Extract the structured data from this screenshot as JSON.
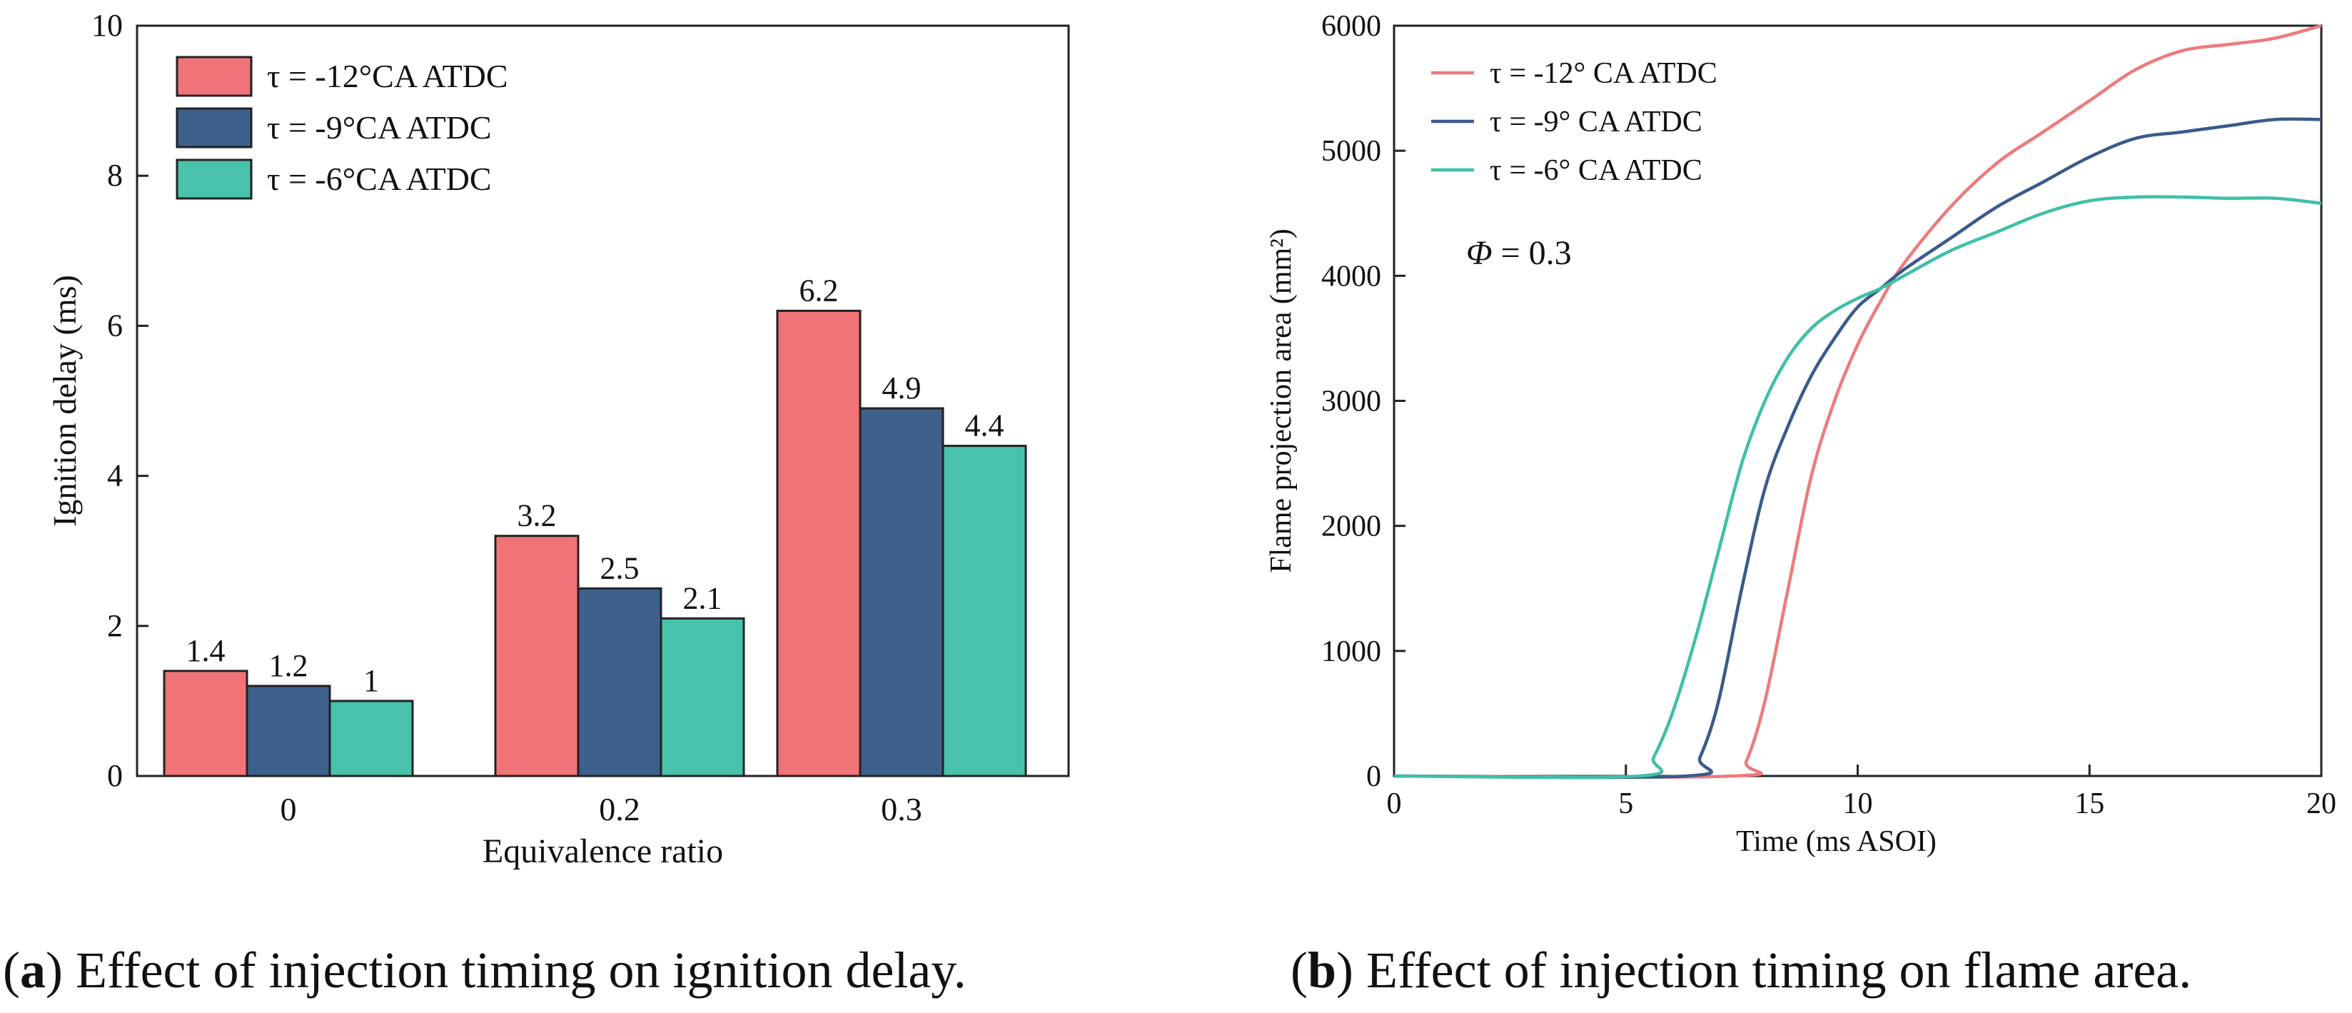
{
  "chart_data": [
    {
      "type": "bar",
      "xlabel": "Equivalence ratio",
      "ylabel": "Ignition delay (ms)",
      "categories": [
        "0",
        "0.2",
        "0.3"
      ],
      "ylim": [
        0,
        10
      ],
      "yticks": [
        0,
        2,
        4,
        6,
        8,
        10
      ],
      "grid": false,
      "legend_position": "top-left",
      "series": [
        {
          "name": "τ = -12°CA ATDC",
          "color": "#f07378",
          "values": [
            1.4,
            3.2,
            6.2
          ],
          "labels": [
            "1.4",
            "3.2",
            "6.2"
          ]
        },
        {
          "name": "τ = -9°CA ATDC",
          "color": "#3f608a",
          "values": [
            1.2,
            2.5,
            4.9
          ],
          "labels": [
            "1.2",
            "2.5",
            "4.9"
          ]
        },
        {
          "name": "τ = -6°CA ATDC",
          "color": "#48c2ab",
          "values": [
            1.0,
            2.1,
            4.4
          ],
          "labels": [
            "1",
            "2.1",
            "4.4"
          ]
        }
      ]
    },
    {
      "type": "line",
      "xlabel": "Time (ms ASOI)",
      "ylabel": "Flame projection area (mm²)",
      "xlim": [
        0,
        20
      ],
      "ylim": [
        0,
        6000
      ],
      "xticks": [
        0,
        5,
        10,
        15,
        20
      ],
      "yticks": [
        0,
        1000,
        2000,
        3000,
        4000,
        5000,
        6000
      ],
      "grid": false,
      "legend_position": "top-left",
      "annotation": {
        "symbol": "Φ",
        "text": " = 0.3"
      },
      "series": [
        {
          "name": "τ = -12° CA ATDC",
          "color": "#ee7a7c",
          "x": [
            0,
            7.3,
            7.6,
            8.0,
            8.5,
            9.0,
            9.5,
            10.0,
            10.5,
            11.0,
            12.0,
            13.0,
            14.0,
            15.0,
            16.0,
            17.0,
            18.0,
            19.0,
            20.0
          ],
          "y": [
            0,
            0,
            120,
            600,
            1500,
            2400,
            3000,
            3450,
            3800,
            4100,
            4550,
            4900,
            5150,
            5400,
            5650,
            5800,
            5850,
            5900,
            6000
          ]
        },
        {
          "name": "τ = -9° CA ATDC",
          "color": "#3a5a8c",
          "x": [
            0,
            6.3,
            6.6,
            7.0,
            7.5,
            8.0,
            8.5,
            9.0,
            9.5,
            10.0,
            10.5,
            11.0,
            12.0,
            13.0,
            14.0,
            15.0,
            16.0,
            17.0,
            18.0,
            19.0,
            20.0
          ],
          "y": [
            0,
            0,
            150,
            600,
            1500,
            2300,
            2800,
            3200,
            3500,
            3750,
            3900,
            4050,
            4300,
            4550,
            4750,
            4950,
            5100,
            5150,
            5200,
            5250,
            5250
          ]
        },
        {
          "name": "τ = -6° CA ATDC",
          "color": "#3ec0a6",
          "x": [
            0,
            5.3,
            5.6,
            6.0,
            6.5,
            7.0,
            7.5,
            8.0,
            8.5,
            9.0,
            9.5,
            10.0,
            10.5,
            11.0,
            12.0,
            13.0,
            14.0,
            15.0,
            16.0,
            17.0,
            18.0,
            19.0,
            20.0
          ],
          "y": [
            0,
            0,
            150,
            500,
            1100,
            1800,
            2500,
            3000,
            3350,
            3580,
            3720,
            3820,
            3900,
            4000,
            4200,
            4350,
            4500,
            4600,
            4630,
            4630,
            4620,
            4620,
            4580
          ]
        }
      ]
    }
  ],
  "captions": [
    {
      "label": "a",
      "text": " Effect of injection timing on ignition delay."
    },
    {
      "label": "b",
      "text": " Effect of injection timing on flame area."
    }
  ]
}
